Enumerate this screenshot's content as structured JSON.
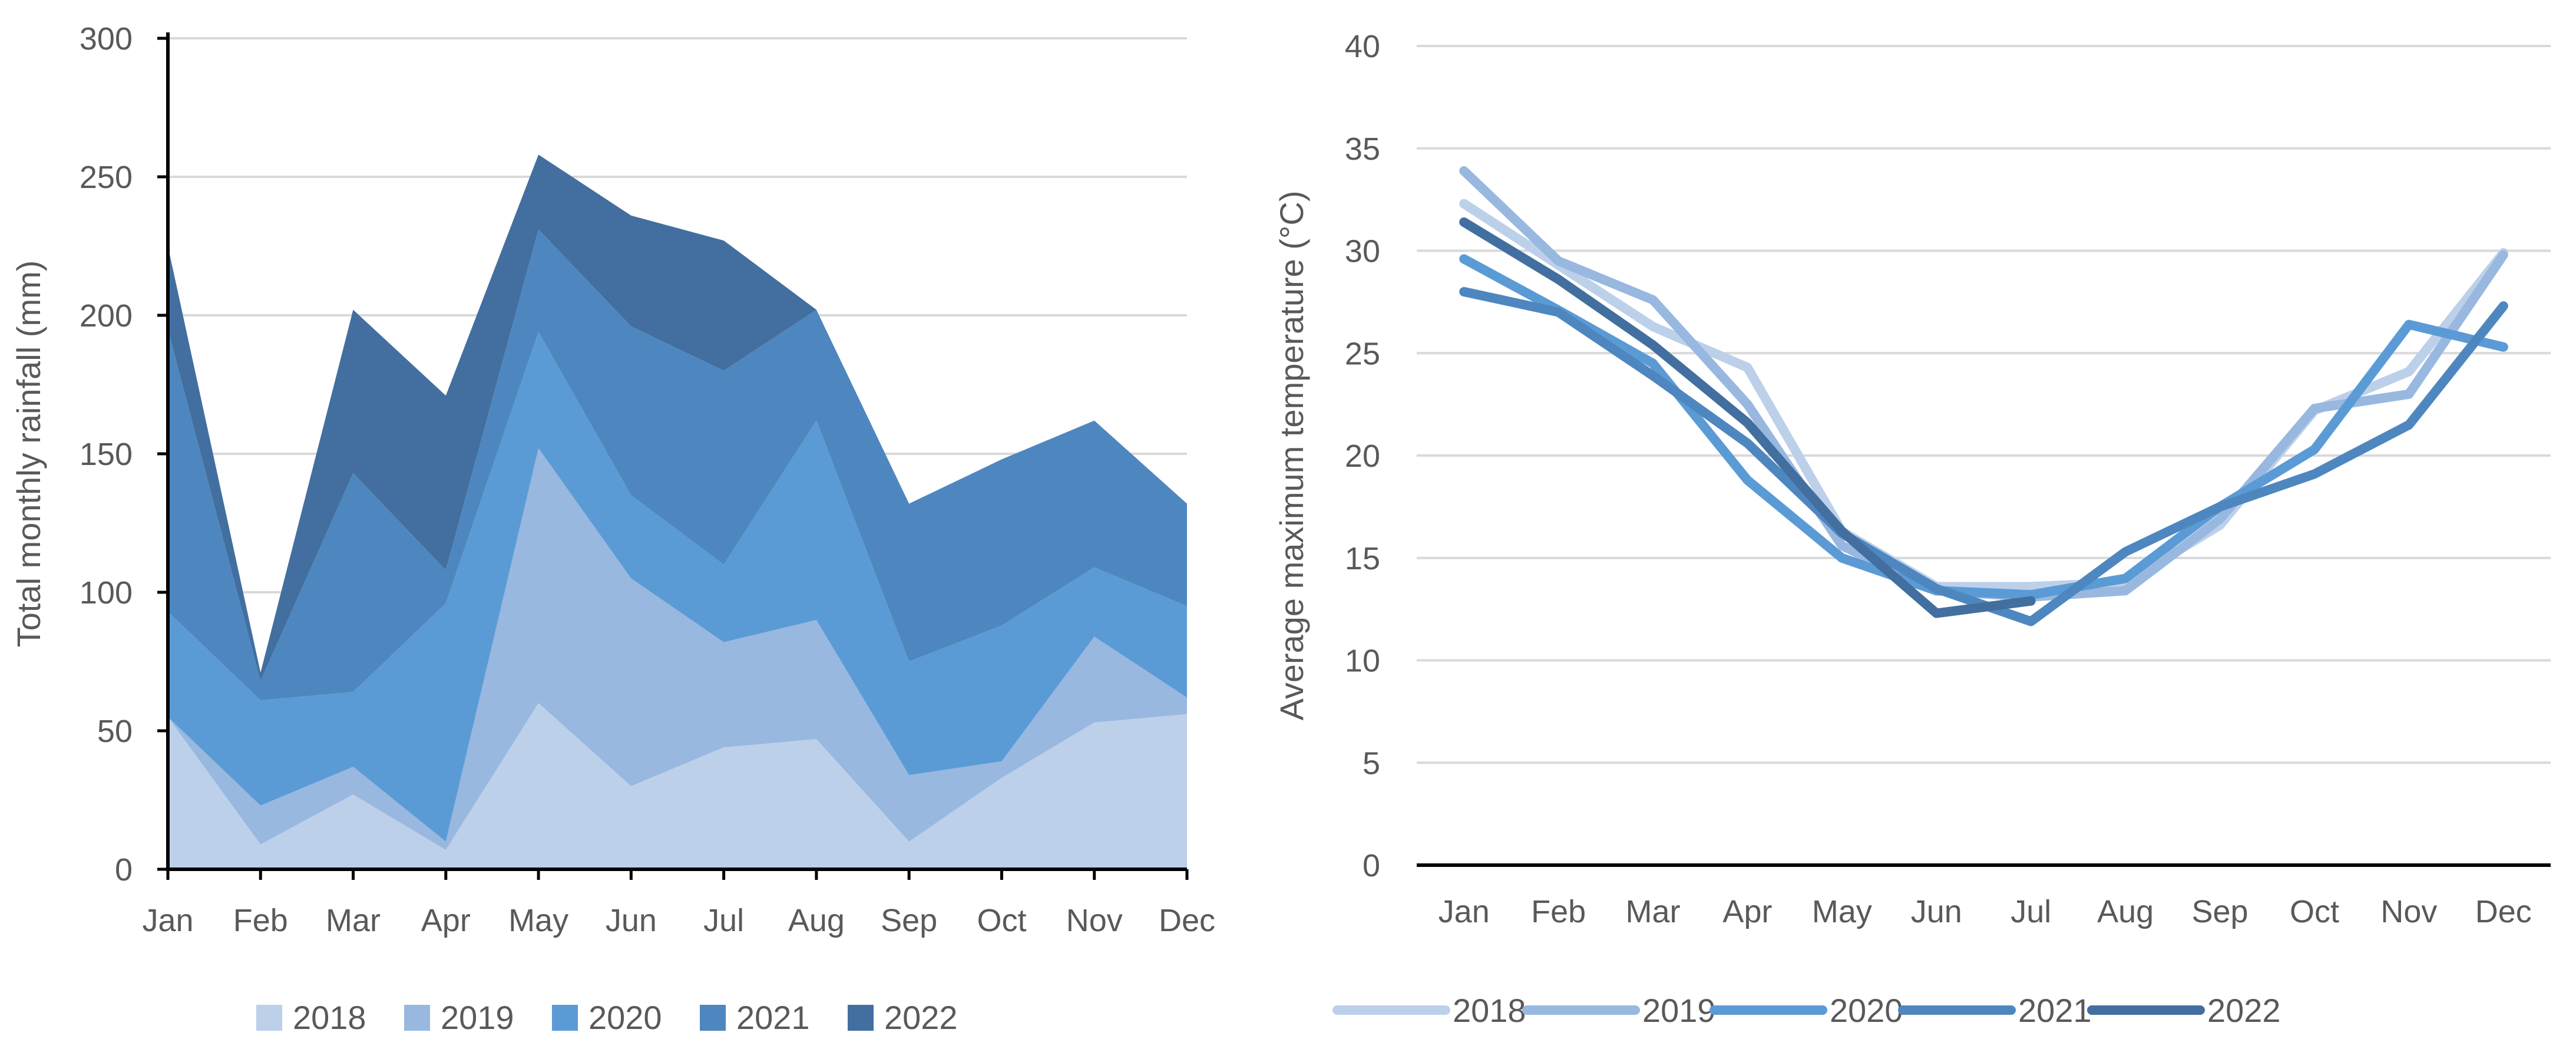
{
  "chart_data": [
    {
      "type": "area",
      "stacked": true,
      "categories": [
        "Jan",
        "Feb",
        "Mar",
        "Apr",
        "May",
        "Jun",
        "Jul",
        "Aug",
        "Sep",
        "Oct",
        "Nov",
        "Dec"
      ],
      "series": [
        {
          "name": "2018",
          "color": "#bdd0ea",
          "values": [
            55,
            9,
            27,
            7,
            60,
            30,
            44,
            47,
            10,
            33,
            53,
            56
          ]
        },
        {
          "name": "2019",
          "color": "#98b8e0",
          "values": [
            0,
            14,
            10,
            3,
            92,
            75,
            38,
            43,
            24,
            6,
            31,
            6
          ]
        },
        {
          "name": "2020",
          "color": "#5b9bd5",
          "values": [
            38,
            38,
            27,
            86,
            42,
            30,
            28,
            72,
            41,
            49,
            25,
            33
          ]
        },
        {
          "name": "2021",
          "color": "#4e87bf",
          "values": [
            102,
            7,
            79,
            12,
            37,
            61,
            70,
            40,
            57,
            60,
            53,
            37
          ]
        },
        {
          "name": "2022",
          "color": "#426f9f",
          "values": [
            30,
            3,
            59,
            63,
            27,
            40,
            47,
            0,
            0,
            0,
            0,
            0
          ]
        }
      ],
      "xlabel": "",
      "ylabel": "Total monthly rainfall (mm)",
      "ylim": [
        0,
        300
      ],
      "yticks": [
        0,
        50,
        100,
        150,
        200,
        250,
        300
      ],
      "grid": true,
      "legend": "bottom"
    },
    {
      "type": "line",
      "categories": [
        "Jan",
        "Feb",
        "Mar",
        "Apr",
        "May",
        "Jun",
        "Jul",
        "Aug",
        "Sep",
        "Oct",
        "Nov",
        "Dec"
      ],
      "series": [
        {
          "name": "2018",
          "color": "#bdd0ea",
          "values": [
            32.3,
            29.3,
            26.3,
            24.3,
            16.3,
            13.6,
            13.6,
            13.8,
            16.6,
            22.2,
            24.1,
            29.9
          ]
        },
        {
          "name": "2019",
          "color": "#98b8e0",
          "values": [
            33.9,
            29.5,
            27.6,
            22.5,
            15.6,
            13.4,
            13.1,
            13.4,
            16.9,
            22.3,
            23.0,
            29.8
          ]
        },
        {
          "name": "2020",
          "color": "#5b9bd5",
          "values": [
            29.6,
            27.1,
            24.5,
            18.8,
            15.0,
            13.4,
            13.2,
            14.0,
            17.5,
            20.3,
            26.4,
            25.3
          ]
        },
        {
          "name": "2021",
          "color": "#4e87bf",
          "values": [
            28.0,
            27.0,
            23.9,
            20.6,
            16.2,
            13.5,
            11.9,
            15.3,
            17.5,
            19.1,
            21.5,
            27.3
          ]
        },
        {
          "name": "2022",
          "color": "#426f9f",
          "values": [
            31.4,
            28.6,
            25.4,
            21.6,
            16.3,
            12.3,
            12.9,
            null,
            null,
            null,
            null,
            null
          ]
        }
      ],
      "xlabel": "",
      "ylabel": "Average maximum temperature (°C)",
      "ylim": [
        0,
        40
      ],
      "yticks": [
        0,
        5,
        10,
        15,
        20,
        25,
        30,
        35,
        40
      ],
      "grid": true,
      "legend": "bottom"
    }
  ]
}
